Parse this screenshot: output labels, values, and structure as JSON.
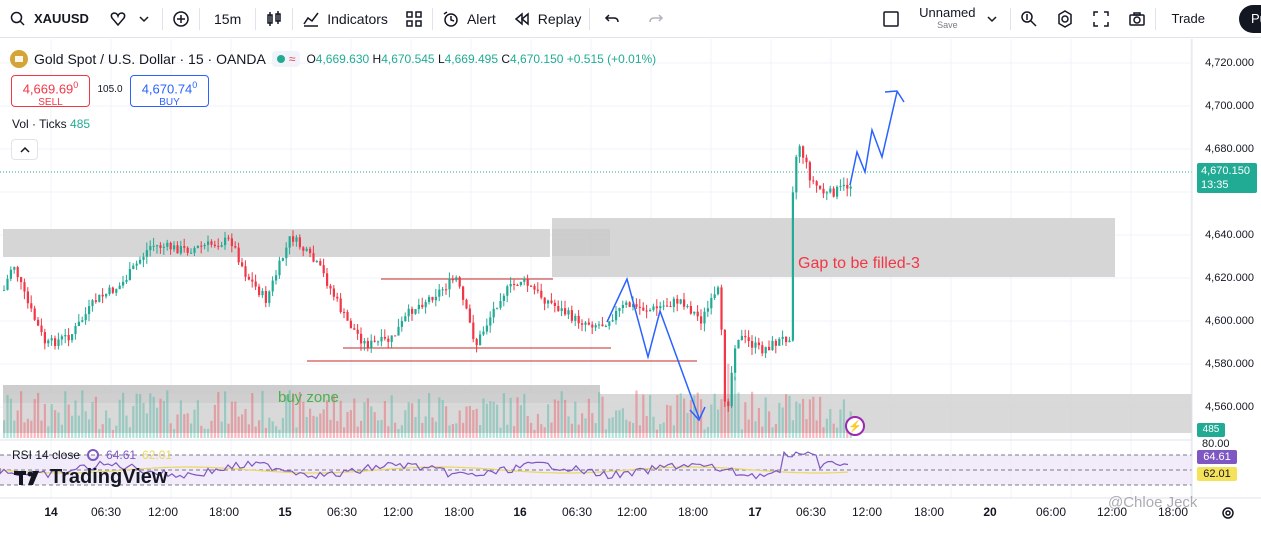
{
  "toolbar": {
    "symbol": "XAUUSD",
    "interval": "15m",
    "indicators_label": "Indicators",
    "alert_label": "Alert",
    "replay_label": "Replay",
    "layout_name": "Unnamed",
    "layout_status": "Save",
    "trade_label": "Trade",
    "publish_label": "Pu"
  },
  "legend": {
    "title": "Gold Spot / U.S. Dollar · 15 · OANDA",
    "open_label": "O",
    "open": "4,669.630",
    "high_label": "H",
    "high": "4,670.545",
    "low_label": "L",
    "low": "4,669.495",
    "close_label": "C",
    "close": "4,670.150",
    "change": "+0.515 (+0.01%)"
  },
  "order": {
    "sell_price": "4,669.69",
    "sell_sup": "0",
    "sell_label": "SELL",
    "spread": "105.0",
    "buy_price": "4,670.74",
    "buy_sup": "0",
    "buy_label": "BUY"
  },
  "volume": {
    "label": "Vol · Ticks",
    "value": "485"
  },
  "rsi": {
    "label": "RSI 14 close",
    "value": "64.61",
    "ma_value": "62.01",
    "level": "80.00"
  },
  "branding": {
    "logo_text": "TradingView"
  },
  "annotations": {
    "gap": "Gap to be filled-3",
    "buy_zone": "buy zone"
  },
  "price_scale": [
    "4,720.000",
    "4,700.000",
    "4,680.000",
    "4,640.000",
    "4,620.000",
    "4,600.000",
    "4,580.000",
    "4,560.000"
  ],
  "current_price": {
    "price": "4,670.150",
    "countdown": "13:35"
  },
  "time_scale": [
    {
      "label": "14",
      "day": true
    },
    {
      "label": "06:30",
      "day": false
    },
    {
      "label": "12:00",
      "day": false
    },
    {
      "label": "18:00",
      "day": false
    },
    {
      "label": "15",
      "day": true
    },
    {
      "label": "06:30",
      "day": false
    },
    {
      "label": "12:00",
      "day": false
    },
    {
      "label": "18:00",
      "day": false
    },
    {
      "label": "16",
      "day": true
    },
    {
      "label": "06:30",
      "day": false
    },
    {
      "label": "12:00",
      "day": false
    },
    {
      "label": "18:00",
      "day": false
    },
    {
      "label": "17",
      "day": true
    },
    {
      "label": "06:30",
      "day": false
    },
    {
      "label": "12:00",
      "day": false
    },
    {
      "label": "18:00",
      "day": false
    },
    {
      "label": "20",
      "day": true
    },
    {
      "label": "06:00",
      "day": false
    },
    {
      "label": "12:00",
      "day": false
    },
    {
      "label": "18:00",
      "day": false
    }
  ],
  "watermark": "@Chloe Jeck",
  "colors": {
    "up": "#22ab94",
    "down": "#f23645",
    "zone": "#cfcfcf",
    "arrow": "#2962ff",
    "rsi": "#7e57c2"
  }
}
